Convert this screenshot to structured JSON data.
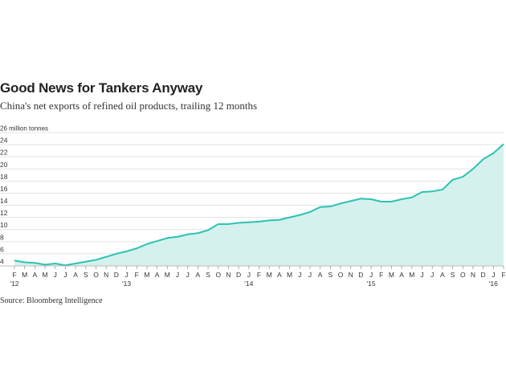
{
  "title": "Good News for Tankers Anyway",
  "subtitle": "China's net exports of refined oil products, trailing 12 months",
  "source": "Source: Bloomberg Intelligence",
  "colors": {
    "line": "#2cc2b0",
    "fill": "#d4f1ee",
    "grid": "#e3e3e3",
    "text": "#333333"
  },
  "chart_data": {
    "type": "area",
    "title": "Good News for Tankers Anyway",
    "subtitle": "China's net exports of refined oil products, trailing 12 months",
    "ylabel": "million tonnes",
    "ylim": [
      4,
      26
    ],
    "yticks": [
      4,
      6,
      8,
      10,
      12,
      14,
      16,
      18,
      20,
      22,
      24,
      26
    ],
    "ytick_labels": [
      "4",
      "6",
      "8",
      "10",
      "12",
      "14",
      "16",
      "18",
      "20",
      "22",
      "24",
      "26 million tonnes"
    ],
    "grid": true,
    "legend": "none",
    "x_month_labels": [
      "F",
      "M",
      "A",
      "M",
      "J",
      "J",
      "A",
      "S",
      "O",
      "N",
      "D",
      "J",
      "F",
      "M",
      "A",
      "M",
      "J",
      "J",
      "A",
      "S",
      "O",
      "N",
      "D",
      "J",
      "F",
      "M",
      "A",
      "M",
      "J",
      "J",
      "A",
      "S",
      "O",
      "N",
      "D",
      "J",
      "F",
      "M",
      "A",
      "M",
      "J",
      "J",
      "A",
      "S",
      "O",
      "N",
      "D",
      "J",
      "F"
    ],
    "x_year_labels": [
      {
        "label": "'12",
        "index": 0
      },
      {
        "label": "'13",
        "index": 11
      },
      {
        "label": "'14",
        "index": 23
      },
      {
        "label": "'15",
        "index": 35
      },
      {
        "label": "'16",
        "index": 47
      }
    ],
    "x": [
      "2012-02",
      "2012-03",
      "2012-04",
      "2012-05",
      "2012-06",
      "2012-07",
      "2012-08",
      "2012-09",
      "2012-10",
      "2012-11",
      "2012-12",
      "2013-01",
      "2013-02",
      "2013-03",
      "2013-04",
      "2013-05",
      "2013-06",
      "2013-07",
      "2013-08",
      "2013-09",
      "2013-10",
      "2013-11",
      "2013-12",
      "2014-01",
      "2014-02",
      "2014-03",
      "2014-04",
      "2014-05",
      "2014-06",
      "2014-07",
      "2014-08",
      "2014-09",
      "2014-10",
      "2014-11",
      "2014-12",
      "2015-01",
      "2015-02",
      "2015-03",
      "2015-04",
      "2015-05",
      "2015-06",
      "2015-07",
      "2015-08",
      "2015-09",
      "2015-10",
      "2015-11",
      "2015-12",
      "2016-01",
      "2016-02"
    ],
    "values": [
      4.9,
      4.6,
      4.5,
      4.2,
      4.4,
      4.1,
      4.4,
      4.7,
      5.0,
      5.5,
      6.0,
      6.4,
      6.9,
      7.6,
      8.1,
      8.6,
      8.8,
      9.2,
      9.4,
      9.9,
      10.9,
      10.9,
      11.1,
      11.2,
      11.3,
      11.5,
      11.6,
      12.0,
      12.4,
      12.9,
      13.7,
      13.8,
      14.3,
      14.7,
      15.1,
      15.0,
      14.6,
      14.6,
      15.0,
      15.3,
      16.2,
      16.3,
      16.6,
      18.2,
      18.7,
      20.0,
      21.6,
      22.6,
      24.1
    ]
  }
}
